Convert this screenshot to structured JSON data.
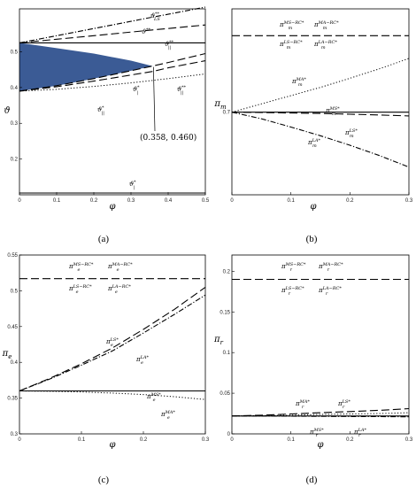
{
  "chart_data": [
    {
      "panel": "(a)",
      "type": "line",
      "xlabel": "φ",
      "ylabel": "ϑ",
      "xlim": [
        0,
        0.5
      ],
      "ylim": [
        0.1,
        0.62
      ],
      "xticks": [
        0,
        0.1,
        0.2,
        0.3,
        0.4,
        0.5
      ],
      "yticks": [
        0.2,
        0.3,
        0.4,
        0.5
      ],
      "x": [
        0,
        0.1,
        0.2,
        0.3,
        0.358,
        0.4,
        0.5
      ],
      "series": [
        {
          "label": "ϑ_(LS)^(**)",
          "style": "dashdot",
          "values": [
            0.525,
            0.545,
            0.565,
            0.585,
            0.597,
            0.605,
            0.625
          ]
        },
        {
          "label": "ϑ^(**)",
          "style": "solid",
          "values": [
            0.525,
            0.525,
            0.525,
            0.525,
            0.525,
            0.525,
            0.525
          ]
        },
        {
          "label": "ϑ_(||)^(**)",
          "style": "dashed",
          "values": [
            0.525,
            0.535,
            0.545,
            0.555,
            0.561,
            0.565,
            0.575
          ]
        },
        {
          "label": "ϑ_(|)^(*)",
          "style": "dashed",
          "values": [
            0.39,
            0.405,
            0.425,
            0.447,
            0.46,
            0.47,
            0.495
          ]
        },
        {
          "label": "ϑ_(||)^(**)",
          "style": "dashed",
          "values": [
            0.39,
            0.402,
            0.418,
            0.435,
            0.445,
            0.455,
            0.475
          ]
        },
        {
          "label": "ϑ_(||)^(*)",
          "style": "dotted",
          "values": [
            0.39,
            0.395,
            0.403,
            0.413,
            0.42,
            0.425,
            0.438
          ]
        },
        {
          "label": "ϑ_(|)^(*)",
          "style": "solid",
          "values": [
            0.105,
            0.105,
            0.105,
            0.105,
            0.105,
            0.105,
            0.105
          ]
        }
      ],
      "shaded_region": {
        "x": [
          0,
          0.1,
          0.2,
          0.3,
          0.358
        ],
        "upper": [
          0.525,
          0.51,
          0.495,
          0.475,
          0.46
        ],
        "lower": [
          0.39,
          0.405,
          0.425,
          0.447,
          0.46
        ],
        "color": "#3b5b95"
      },
      "annotation": "(0.358, 0.460)"
    },
    {
      "panel": "(b)",
      "type": "line",
      "xlabel": "φ",
      "ylabel": "π_m",
      "xlim": [
        0,
        0.3
      ],
      "ylim": [
        0.5,
        0.95
      ],
      "xticks": [
        0,
        0.1,
        0.2,
        0.3
      ],
      "yticks": [
        0.7
      ],
      "x": [
        0,
        0.05,
        0.1,
        0.15,
        0.2,
        0.25,
        0.3
      ],
      "series": [
        {
          "label": "π_m^(MS−RC*), π_m^(MA−RC*), π_m^(LS−RC*), π_m^(LA−RC*)",
          "style": "dashed",
          "values": [
            0.885,
            0.885,
            0.885,
            0.885,
            0.885,
            0.885,
            0.885
          ]
        },
        {
          "label": "π_m^(MA*)",
          "style": "dotted",
          "values": [
            0.7,
            0.72,
            0.74,
            0.76,
            0.782,
            0.805,
            0.83
          ]
        },
        {
          "label": "π_m^(MS*)",
          "style": "solid",
          "values": [
            0.7,
            0.7,
            0.7,
            0.7,
            0.7,
            0.7,
            0.7
          ]
        },
        {
          "label": "π_m^(LS*)",
          "style": "dashed",
          "values": [
            0.7,
            0.699,
            0.698,
            0.697,
            0.695,
            0.693,
            0.691
          ]
        },
        {
          "label": "π_m^(LA*)",
          "style": "dashdot",
          "values": [
            0.7,
            0.684,
            0.664,
            0.643,
            0.62,
            0.595,
            0.567
          ]
        }
      ]
    },
    {
      "panel": "(c)",
      "type": "line",
      "xlabel": "φ",
      "ylabel": "π_e",
      "xlim": [
        0,
        0.3
      ],
      "ylim": [
        0.3,
        0.55
      ],
      "xticks": [
        0,
        0.1,
        0.2,
        0.3
      ],
      "yticks": [
        0.3,
        0.35,
        0.4,
        0.45,
        0.5,
        0.55
      ],
      "x": [
        0,
        0.05,
        0.1,
        0.15,
        0.2,
        0.25,
        0.3
      ],
      "series": [
        {
          "label": "π_e^(MS−RC*), π_e^(MA−RC*), π_e^(LS−RC*), π_e^(LA−RC*)",
          "style": "dashed",
          "values": [
            0.517,
            0.517,
            0.517,
            0.517,
            0.517,
            0.517,
            0.517
          ]
        },
        {
          "label": "π_e^(LS*)",
          "style": "dashed",
          "values": [
            0.36,
            0.378,
            0.398,
            0.42,
            0.446,
            0.474,
            0.505
          ]
        },
        {
          "label": "π_e^(LA*)",
          "style": "dashdot",
          "values": [
            0.36,
            0.377,
            0.396,
            0.416,
            0.441,
            0.467,
            0.494
          ]
        },
        {
          "label": "π_e^(MS*)",
          "style": "solid",
          "values": [
            0.36,
            0.36,
            0.36,
            0.36,
            0.36,
            0.36,
            0.36
          ]
        },
        {
          "label": "π_e^(MA*)",
          "style": "dotted",
          "values": [
            0.36,
            0.3595,
            0.3585,
            0.357,
            0.355,
            0.352,
            0.348
          ]
        }
      ]
    },
    {
      "panel": "(d)",
      "type": "line",
      "xlabel": "φ",
      "ylabel": "π_r",
      "xlim": [
        0,
        0.3
      ],
      "ylim": [
        0,
        0.22
      ],
      "xticks": [
        0,
        0.1,
        0.2,
        0.3
      ],
      "yticks": [
        0,
        0.05,
        0.1,
        0.15,
        0.2
      ],
      "x": [
        0,
        0.05,
        0.1,
        0.15,
        0.2,
        0.25,
        0.3
      ],
      "series": [
        {
          "label": "π_r^(MS−RC*), π_r^(MA−RC*), π_r^(LS−RC*), π_r^(LA−RC*)",
          "style": "dashed",
          "values": [
            0.19,
            0.19,
            0.19,
            0.19,
            0.19,
            0.19,
            0.19
          ]
        },
        {
          "label": "π_r^(LS*)",
          "style": "dashed",
          "values": [
            0.022,
            0.023,
            0.0245,
            0.026,
            0.0275,
            0.029,
            0.031
          ]
        },
        {
          "label": "π_r^(MA*)",
          "style": "dotted",
          "values": [
            0.022,
            0.0225,
            0.023,
            0.024,
            0.0245,
            0.025,
            0.026
          ]
        },
        {
          "label": "π_r^(MS*)",
          "style": "solid",
          "values": [
            0.022,
            0.022,
            0.022,
            0.022,
            0.022,
            0.022,
            0.022
          ]
        },
        {
          "label": "π_r^(LA*)",
          "style": "dashdot",
          "values": [
            0.022,
            0.022,
            0.0218,
            0.0216,
            0.0214,
            0.0212,
            0.021
          ]
        }
      ]
    }
  ],
  "captions": [
    "(a)",
    "(b)",
    "(c)",
    "(d)"
  ],
  "colors": {
    "line": "#000000",
    "fill": "#3b5b95"
  }
}
